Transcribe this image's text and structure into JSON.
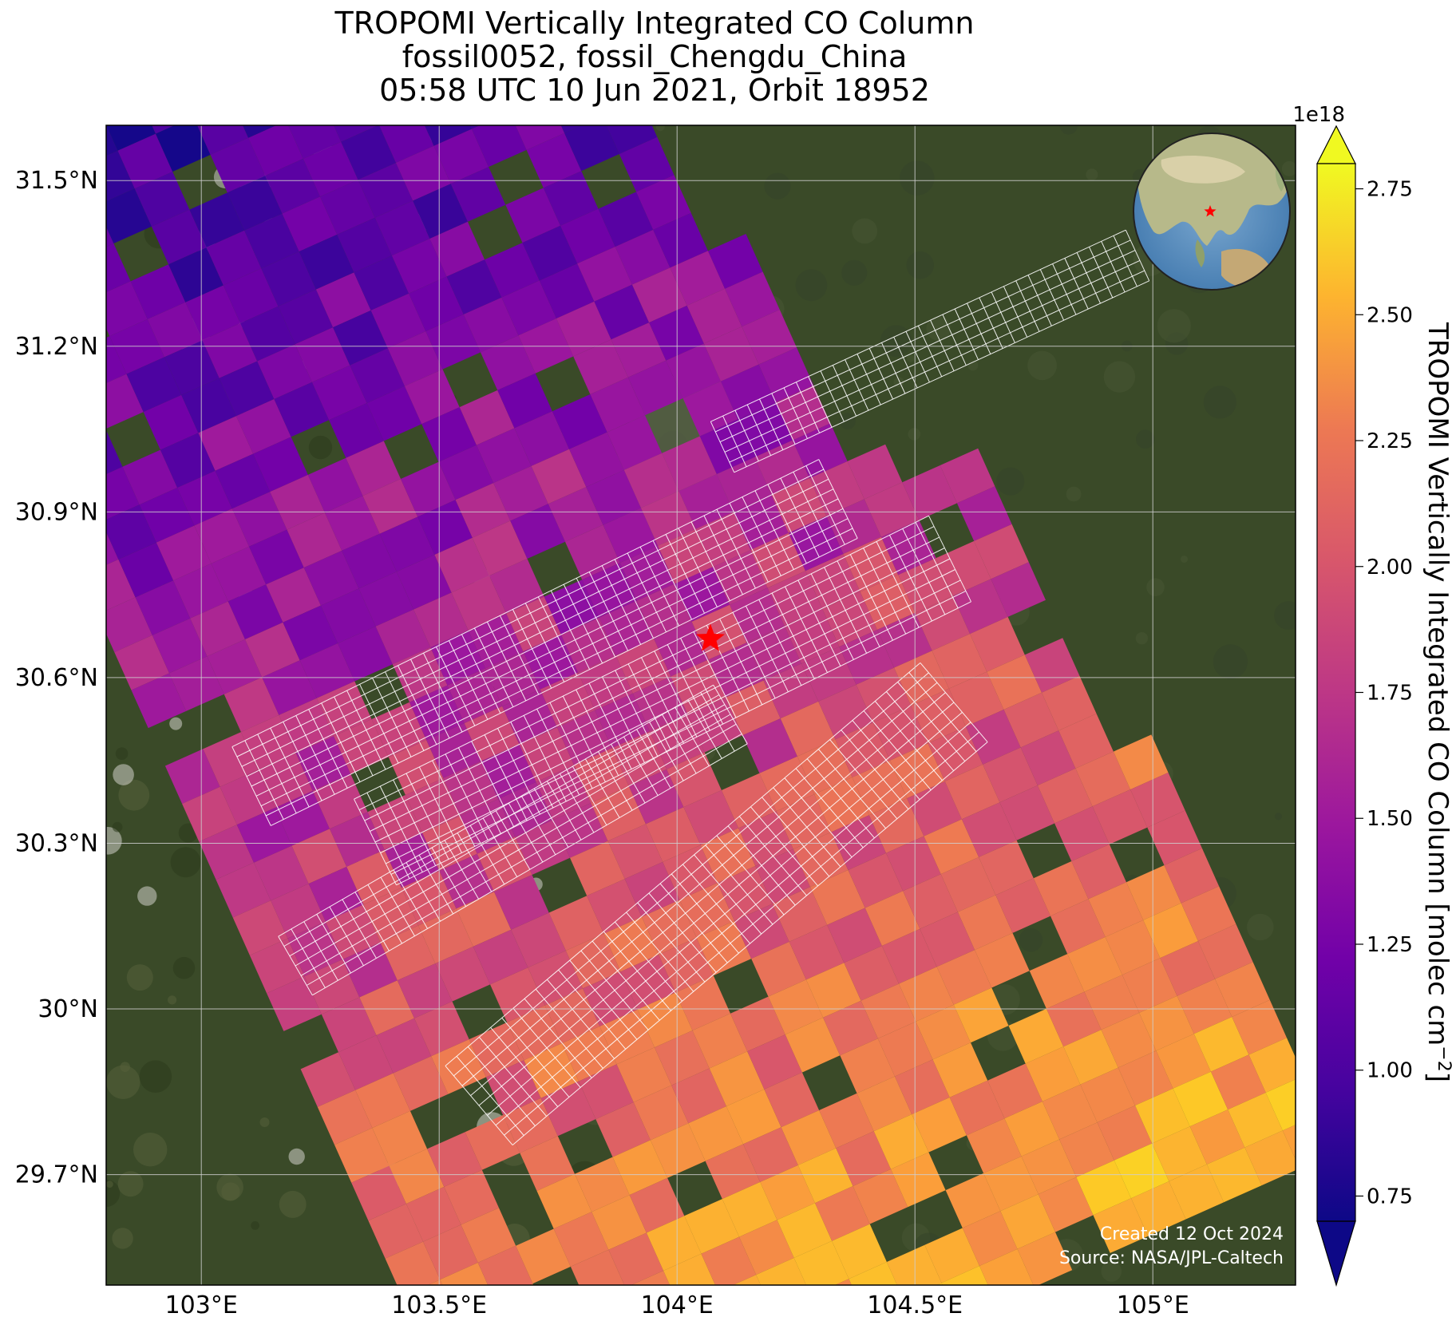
{
  "title": {
    "line1": "TROPOMI Vertically Integrated CO Column",
    "line2": "fossil0052, fossil_Chengdu_China",
    "line3": "05:58 UTC 10 Jun 2021, Orbit 18952"
  },
  "map": {
    "lon_range": [
      102.8,
      105.3
    ],
    "lat_range": [
      29.5,
      31.6
    ],
    "lon_ticks": [
      {
        "value": 103.0,
        "label": "103°E"
      },
      {
        "value": 103.5,
        "label": "103.5°E"
      },
      {
        "value": 104.0,
        "label": "104°E"
      },
      {
        "value": 104.5,
        "label": "104.5°E"
      },
      {
        "value": 105.0,
        "label": "105°E"
      }
    ],
    "lat_ticks": [
      {
        "value": 29.7,
        "label": "29.7°N"
      },
      {
        "value": 30.0,
        "label": "30°N"
      },
      {
        "value": 30.3,
        "label": "30.3°N"
      },
      {
        "value": 30.6,
        "label": "30.6°N"
      },
      {
        "value": 30.9,
        "label": "30.9°N"
      },
      {
        "value": 31.2,
        "label": "31.2°N"
      },
      {
        "value": 31.5,
        "label": "31.5°N"
      }
    ],
    "grid": true,
    "target": {
      "lon": 104.07,
      "lat": 30.67,
      "marker": "red-star"
    },
    "inset_globe": {
      "position": "top-right",
      "marker": "red-star"
    },
    "background": "satellite imagery",
    "swath_direction": "northwest-southeast"
  },
  "colorbar": {
    "label": "TROPOMI Vertically Integrated CO Column [molec cm",
    "label_exponent": "−2",
    "label_close": "]",
    "scale_factor": "1e18",
    "range": [
      0.7,
      2.8
    ],
    "ticks": [
      {
        "value": 0.75,
        "label": "0.75"
      },
      {
        "value": 1.0,
        "label": "1.00"
      },
      {
        "value": 1.25,
        "label": "1.25"
      },
      {
        "value": 1.5,
        "label": "1.50"
      },
      {
        "value": 1.75,
        "label": "1.75"
      },
      {
        "value": 2.0,
        "label": "2.00"
      },
      {
        "value": 2.25,
        "label": "2.25"
      },
      {
        "value": 2.5,
        "label": "2.50"
      },
      {
        "value": 2.75,
        "label": "2.75"
      }
    ],
    "colormap": "plasma",
    "extend": "both",
    "min_color": "#0d0887",
    "max_color": "#f0f921"
  },
  "credits": {
    "created": "Created 12 Oct 2024",
    "source": "Source: NASA/JPL-Caltech"
  },
  "colors": {
    "target_marker": "#ff0000",
    "overpass_grid": "#ffffff",
    "map_grid": "#cfcfcf",
    "land": "#3a4a28"
  }
}
